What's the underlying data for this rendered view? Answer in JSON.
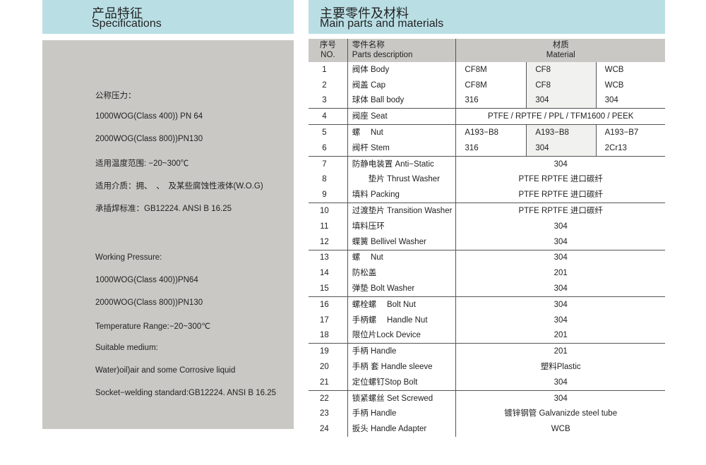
{
  "specs": {
    "title_zh": "产品特征",
    "title_en": "Specifications",
    "lines": [
      "公称压力：",
      "1000WOG(Class 400)) PN 64",
      "2000WOG(Class 800))PN130",
      "适用温度范围: −20~300℃",
      "适用介质：拥、　、　及某些腐蚀性液体(W.O.G)",
      "承插焊标准：GB12224. ANSI B 16.25",
      "Working Pressure:",
      "1000WOG(Class 400))PN64",
      "2000WOG(Class 800))PN130",
      "Temperature Range:−20~300℃",
      "Suitable medium:",
      "Water)oil)air and some Corrosive liquid",
      "Socket−welding standard:GB12224. ANSI B 16.25"
    ]
  },
  "parts": {
    "title_zh": "主要零件及材料",
    "title_en": "Main parts and materials",
    "header": {
      "no_zh": "序号",
      "no_en": "NO.",
      "desc_zh": "零件名称",
      "desc_en": "Parts  description",
      "mat_zh": "材质",
      "mat_en": "Material"
    },
    "rows": [
      {
        "no": "1",
        "desc": "阀体 Body",
        "m": [
          "CF8M",
          "CF8",
          "WCB"
        ]
      },
      {
        "no": "2",
        "desc": "阀盖 Cap",
        "m": [
          "CF8M",
          "CF8",
          "WCB"
        ]
      },
      {
        "no": "3",
        "desc": "球体 Ball body",
        "m": [
          "316",
          "304",
          "304"
        ]
      },
      {
        "no": "4",
        "desc": "阀座 Seat",
        "m": [
          "PTFE / RPTFE / PPL / TFM1600 / PEEK"
        ]
      },
      {
        "no": "5",
        "desc": "螺　 Nut",
        "m": [
          "A193−B8",
          "A193−B8",
          "A193−B7"
        ]
      },
      {
        "no": "6",
        "desc": "阀杆 Stem",
        "m": [
          "316",
          "304",
          "2Cr13"
        ]
      },
      {
        "no": "7",
        "desc": "防静电装置 Anti−Static",
        "m": [
          "304"
        ]
      },
      {
        "no": "8",
        "desc": "　　垫片 Thrust Washer",
        "m": [
          "PTFE  RPTFE 进口碳纤"
        ]
      },
      {
        "no": "9",
        "desc": "填料 Packing",
        "m": [
          "PTFE  RPTFE 进口碳纤"
        ]
      },
      {
        "no": "10",
        "desc": "过渡垫片 Transition Washer",
        "m": [
          "PTFE  RPTFE 进口碳纤"
        ]
      },
      {
        "no": "11",
        "desc": "填料压环",
        "m": [
          "304"
        ]
      },
      {
        "no": "12",
        "desc": "蝶簧 Bellivel Washer",
        "m": [
          "304"
        ]
      },
      {
        "no": "13",
        "desc": "螺　  Nut",
        "m": [
          "304"
        ]
      },
      {
        "no": "14",
        "desc": "防松盖",
        "m": [
          "201"
        ]
      },
      {
        "no": "15",
        "desc": "弹垫  Bolt Washer",
        "m": [
          "304"
        ]
      },
      {
        "no": "16",
        "desc": "螺栓螺　 Bolt Nut",
        "m": [
          "304"
        ]
      },
      {
        "no": "17",
        "desc": "手柄螺　 Handle Nut",
        "m": [
          "304"
        ]
      },
      {
        "no": "18",
        "desc": "限位片Lock Device",
        "m": [
          "201"
        ]
      },
      {
        "no": "19",
        "desc": "手柄  Handle",
        "m": [
          "201"
        ]
      },
      {
        "no": "20",
        "desc": "手柄 套 Handle sleeve",
        "m": [
          "塑料Plastic"
        ]
      },
      {
        "no": "21",
        "desc": "定位螺钉Stop Bolt",
        "m": [
          "304"
        ]
      },
      {
        "no": "22",
        "desc": "锁紧螺丝 Set Screwed",
        "m": [
          "304"
        ]
      },
      {
        "no": "23",
        "desc": "手柄  Handle",
        "m": [
          "镀锌钢管 Galvanizde steel tube"
        ]
      },
      {
        "no": "24",
        "desc": "扳头  Handle Adapter",
        "m": [
          "WCB"
        ]
      }
    ]
  }
}
